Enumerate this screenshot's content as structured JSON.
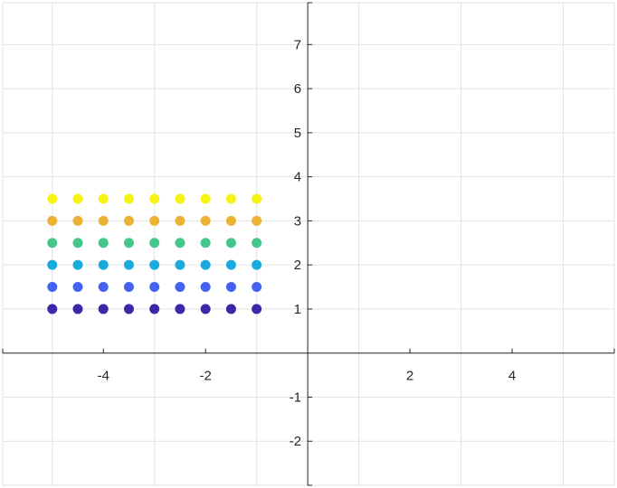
{
  "chart_data": {
    "type": "scatter",
    "title": "",
    "xlabel": "",
    "ylabel": "",
    "xlim": [
      -5.97,
      6.0
    ],
    "ylim": [
      -3.0,
      7.95
    ],
    "grid": true,
    "axis_location": "origin",
    "x_ticks": [
      -4,
      -2,
      2,
      4
    ],
    "y_ticks": [
      -2,
      -1,
      1,
      2,
      3,
      4,
      5,
      6,
      7
    ],
    "x_tick_labels": [
      "-4",
      "-2",
      "2",
      "4"
    ],
    "y_tick_labels": [
      "-2",
      "-1",
      "1",
      "2",
      "3",
      "4",
      "5",
      "6",
      "7"
    ],
    "series": [
      {
        "color": "#3e26a8",
        "x": [
          -5,
          -4.5,
          -4,
          -3.5,
          -3,
          -2.5,
          -2,
          -1.5,
          -1
        ],
        "y": [
          1,
          1,
          1,
          1,
          1,
          1,
          1,
          1,
          1
        ]
      },
      {
        "color": "#4561f0",
        "x": [
          -5,
          -4.5,
          -4,
          -3.5,
          -3,
          -2.5,
          -2,
          -1.5,
          -1
        ],
        "y": [
          1.5,
          1.5,
          1.5,
          1.5,
          1.5,
          1.5,
          1.5,
          1.5,
          1.5
        ]
      },
      {
        "color": "#1aabde",
        "x": [
          -5,
          -4.5,
          -4,
          -3.5,
          -3,
          -2.5,
          -2,
          -1.5,
          -1
        ],
        "y": [
          2,
          2,
          2,
          2,
          2,
          2,
          2,
          2,
          2
        ]
      },
      {
        "color": "#45c78a",
        "x": [
          -5,
          -4.5,
          -4,
          -3.5,
          -3,
          -2.5,
          -2,
          -1.5,
          -1
        ],
        "y": [
          2.5,
          2.5,
          2.5,
          2.5,
          2.5,
          2.5,
          2.5,
          2.5,
          2.5
        ]
      },
      {
        "color": "#ecb234",
        "x": [
          -5,
          -4.5,
          -4,
          -3.5,
          -3,
          -2.5,
          -2,
          -1.5,
          -1
        ],
        "y": [
          3,
          3,
          3,
          3,
          3,
          3,
          3,
          3,
          3
        ]
      },
      {
        "color": "#f9f314",
        "x": [
          -5,
          -4.5,
          -4,
          -3.5,
          -3,
          -2.5,
          -2,
          -1.5,
          -1
        ],
        "y": [
          3.5,
          3.5,
          3.5,
          3.5,
          3.5,
          3.5,
          3.5,
          3.5,
          3.5
        ]
      }
    ]
  },
  "colors": {
    "grid": "#e3e3e3",
    "axis": "#262626"
  }
}
